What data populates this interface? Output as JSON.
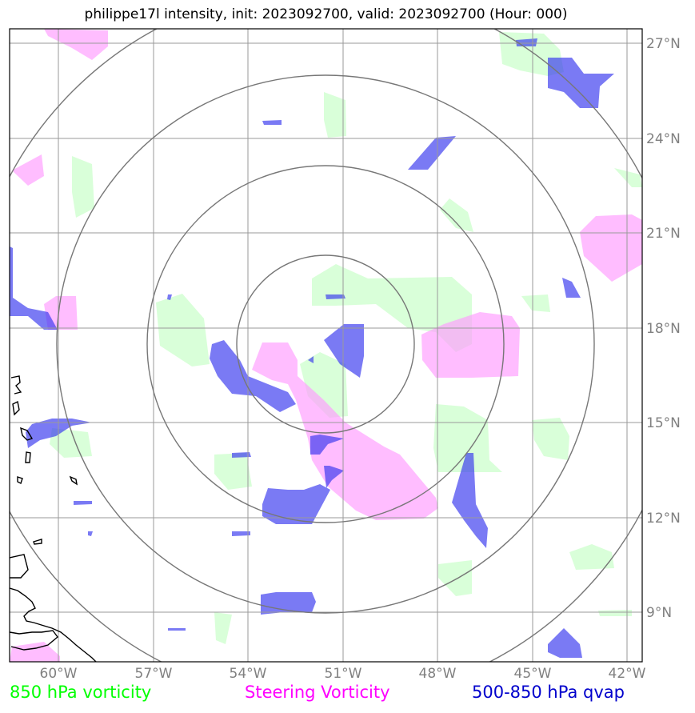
{
  "title": "philippe17l intensity, init: 2023092700, valid: 2023092700 (Hour: 000)",
  "map": {
    "lat_labels": [
      "27°N",
      "24°N",
      "21°N",
      "18°N",
      "15°N",
      "12°N",
      "9°N"
    ],
    "lon_labels": [
      "60°W",
      "57°W",
      "54°W",
      "51°W",
      "48°W",
      "45°W",
      "42°W"
    ],
    "range_ring_center": "17.5°N 51.5°W",
    "range_rings_count": 4
  },
  "legend": [
    {
      "label": "850 hPa vorticity",
      "color": "#00ff00"
    },
    {
      "label": "Steering Vorticity",
      "color": "#ff00ff"
    },
    {
      "label": "500-850 hPa qvap",
      "color": "#0000cc"
    }
  ],
  "colors": {
    "vort850_fill": "#ccffcc",
    "steering_fill": "#ff99ff",
    "qvap_fill": "#3333ee",
    "gridline": "#9a9a9a",
    "ring": "#777777",
    "coast": "#000000"
  }
}
